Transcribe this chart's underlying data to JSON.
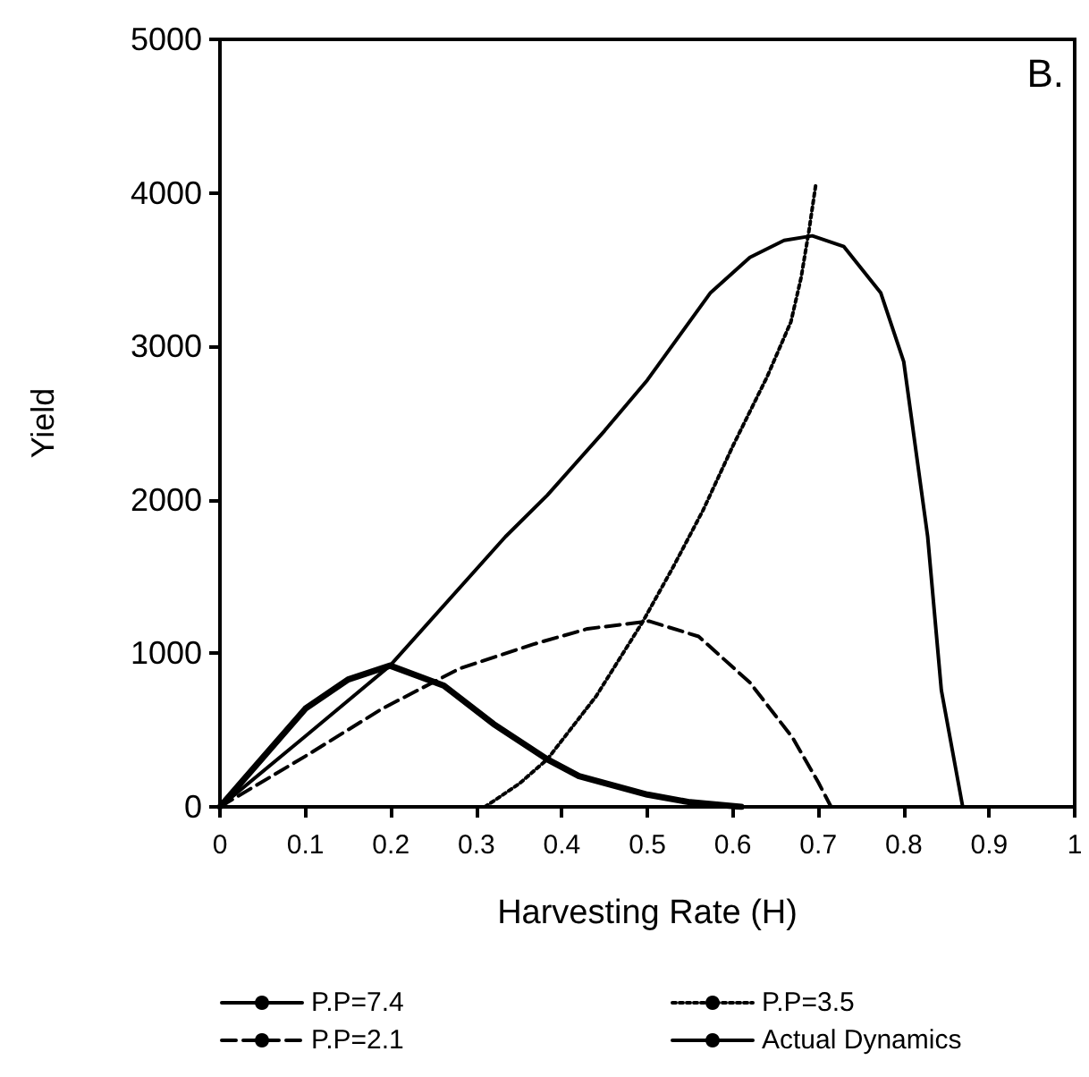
{
  "chart_data": {
    "type": "line",
    "xlabel": "Harvesting Rate (H)",
    "ylabel": "Yield",
    "annotations": [
      "B."
    ],
    "xlim": [
      0,
      1
    ],
    "xticks": [
      0,
      0.1,
      0.2,
      0.3,
      0.4,
      0.5,
      0.6,
      0.7,
      0.8,
      0.9,
      1
    ],
    "ylim": [
      0,
      5000
    ],
    "yticks": [
      0,
      1000,
      2000,
      3000,
      4000,
      5000
    ],
    "grid": false,
    "legend": "bottom",
    "marker": "none",
    "series": [
      {
        "name": "P.P=7.4",
        "color": "#000000",
        "line_style": "solid",
        "x": [
          0,
          0.1,
          0.199,
          0.334,
          0.383,
          0.45,
          0.5,
          0.574,
          0.62,
          0.66,
          0.693,
          0.73,
          0.773,
          0.8,
          0.828,
          0.844,
          0.869
        ],
        "values": [
          0,
          460,
          920,
          1760,
          2030,
          2450,
          2780,
          3350,
          3580,
          3690,
          3720,
          3650,
          3350,
          2900,
          1760,
          760,
          0
        ]
      },
      {
        "name": "P.P=3.5",
        "color": "#000000",
        "line_style": "dotted",
        "x": [
          0.31,
          0.35,
          0.383,
          0.44,
          0.494,
          0.53,
          0.565,
          0.6,
          0.64,
          0.668,
          0.68,
          0.689,
          0.697
        ],
        "values": [
          0,
          150,
          310,
          720,
          1200,
          1560,
          1930,
          2350,
          2800,
          3160,
          3450,
          3750,
          4050
        ]
      },
      {
        "name": "P.P=2.1",
        "color": "#000000",
        "line_style": "dashed",
        "x": [
          0,
          0.1,
          0.19,
          0.28,
          0.367,
          0.43,
          0.502,
          0.56,
          0.62,
          0.67,
          0.7,
          0.715
        ],
        "values": [
          0,
          330,
          640,
          900,
          1060,
          1160,
          1210,
          1110,
          810,
          450,
          160,
          0
        ]
      },
      {
        "name": "Actual Dynamics",
        "color": "#000000",
        "line_style": "solid",
        "x": [
          0,
          0.05,
          0.1,
          0.15,
          0.199,
          0.262,
          0.32,
          0.383,
          0.42,
          0.5,
          0.55,
          0.61
        ],
        "values": [
          0,
          320,
          640,
          830,
          920,
          790,
          540,
          310,
          200,
          80,
          30,
          0
        ]
      }
    ]
  }
}
